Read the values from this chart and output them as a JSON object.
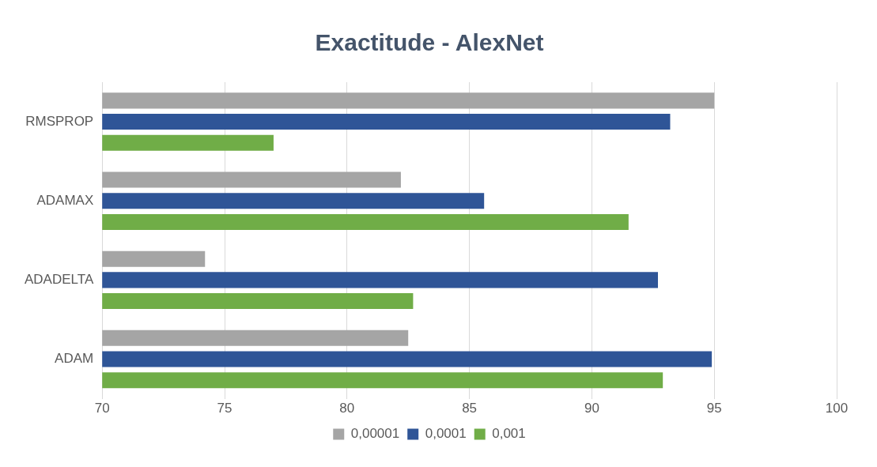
{
  "chart_data": {
    "type": "bar",
    "orientation": "horizontal",
    "title": "Exactitude - AlexNet",
    "categories": [
      "RMSPROP",
      "ADAMAX",
      "ADADELTA",
      "ADAM"
    ],
    "series": [
      {
        "name": "0,00001",
        "color": "#a5a5a5",
        "values": [
          95.0,
          82.2,
          74.2,
          82.5
        ]
      },
      {
        "name": "0,0001",
        "color": "#2f5597",
        "values": [
          93.2,
          85.6,
          92.7,
          94.9
        ]
      },
      {
        "name": "0,001",
        "color": "#70ad47",
        "values": [
          77.0,
          91.5,
          82.7,
          92.9
        ]
      }
    ],
    "xlim": [
      70,
      100
    ],
    "xticks": [
      70,
      75,
      80,
      85,
      90,
      95,
      100
    ],
    "grid": "x",
    "legend": "bottom"
  }
}
